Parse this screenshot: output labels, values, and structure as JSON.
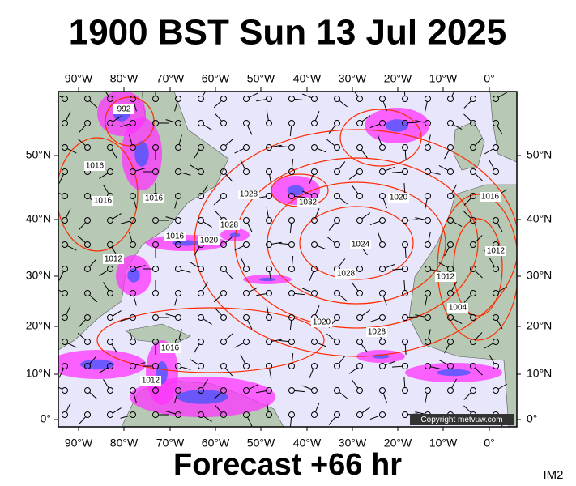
{
  "header": {
    "title": "1900 BST Sun 13 Jul 2025"
  },
  "map": {
    "lon_labels": [
      "90°W",
      "80°W",
      "70°W",
      "60°W",
      "50°W",
      "40°W",
      "30°W",
      "20°W",
      "10°W",
      "0°"
    ],
    "lat_labels": [
      "50°N",
      "40°N",
      "30°N",
      "20°N",
      "10°N",
      "0°"
    ],
    "contour_labels": [
      "992",
      "1016",
      "1016",
      "1012",
      "1016",
      "1016",
      "1020",
      "1028",
      "1028",
      "1032",
      "1020",
      "1016",
      "1024",
      "1028",
      "1020",
      "1028",
      "1016",
      "1012",
      "1012",
      "1004",
      "1012"
    ],
    "copyright": "Copyright metvuw.com"
  },
  "footer": {
    "forecast": "Forecast +66 hr",
    "code": "IM2"
  }
}
